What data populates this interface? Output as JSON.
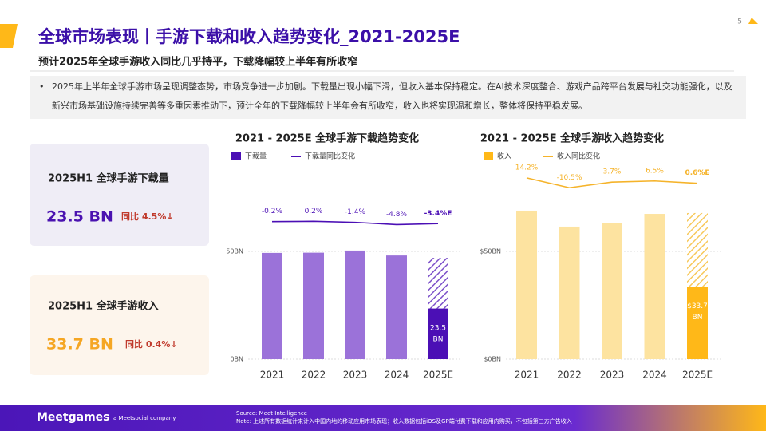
{
  "page_number": "5",
  "header": {
    "title": "全球市场表现丨手游下载和收入趋势变化_2021-2025E",
    "subtitle": "预计2025年全球手游收入同比几乎持平，下载降幅较上半年有所收窄"
  },
  "summary": "2025年上半年全球手游市场呈现调整态势，市场竞争进一步加剧。下载量出现小幅下滑，但收入基本保持稳定。在AI技术深度整合、游戏产品跨平台发展与社交功能强化，以及新兴市场基础设施持续完善等多重因素推动下，预计全年的下载降幅较上半年会有所收窄，收入也将实现温和增长，整体将保持平稳发展。",
  "cards": [
    {
      "title": "2025H1 全球手游下载量",
      "value": "23.5 BN",
      "change": "同比 4.5%↓"
    },
    {
      "title": "2025H1 全球手游收入",
      "value": "33.7 BN",
      "change": "同比 0.4%↓"
    }
  ],
  "chart_data": [
    {
      "type": "bar",
      "title": "2021 - 2025E 全球手游下载趋势变化",
      "categories": [
        "2021",
        "2022",
        "2023",
        "2024",
        "2025E"
      ],
      "ylim": [
        0,
        80
      ],
      "yticks": [
        {
          "value": 0,
          "label": "0BN"
        },
        {
          "value": 50,
          "label": "50BN"
        }
      ],
      "y2lim": [
        -40,
        40
      ],
      "series": [
        {
          "name": "下载量",
          "color": "#9b72d9",
          "highlight_color": "#4b0fb5",
          "values": [
            49.3,
            49.4,
            50.4,
            48.1,
            23.5
          ],
          "value_labels": [
            null,
            null,
            null,
            null,
            "23.5 BN"
          ],
          "forecast_values": [
            null,
            null,
            null,
            null,
            23.5
          ]
        },
        {
          "name": "下载量同比变化",
          "type": "line",
          "axis": "y2",
          "color": "#4b0fb5",
          "values": [
            -0.2,
            0.2,
            -1.4,
            -4.8,
            -3.4
          ],
          "value_labels": [
            "-0.2%",
            "0.2%",
            "-1.4%",
            "-4.8%",
            "-3.4%E"
          ]
        }
      ]
    },
    {
      "type": "bar",
      "title": "2021 - 2025E 全球手游收入趋势变化",
      "categories": [
        "2021",
        "2022",
        "2023",
        "2024",
        "2025E"
      ],
      "ylim": [
        0,
        80
      ],
      "yticks": [
        {
          "value": 0,
          "label": "$0BN"
        },
        {
          "value": 50,
          "label": "$50BN"
        }
      ],
      "y2lim": [
        -60,
        60
      ],
      "series": [
        {
          "name": "收入",
          "color": "#fde3a0",
          "highlight_color": "#ffb818",
          "values": [
            68.9,
            61.5,
            63.3,
            67.4,
            33.7
          ],
          "value_labels": [
            null,
            null,
            null,
            null,
            "$33.7 BN"
          ],
          "forecast_values": [
            null,
            null,
            null,
            null,
            34.1
          ]
        },
        {
          "name": "收入同比变化",
          "type": "line",
          "axis": "y2",
          "color": "#f5b32a",
          "values": [
            14.2,
            -10.5,
            3.7,
            6.5,
            0.6
          ],
          "value_labels": [
            "14.2%",
            "-10.5%",
            "3.7%",
            "6.5%",
            "0.6%E"
          ]
        }
      ]
    }
  ],
  "footer": {
    "logo": "Meetgames",
    "tagline": "a Meetsocial company",
    "source": "Source: Meet Intelligence",
    "note": "Note: 上述所有数据统计来计入中国内地的移动应用市场表现；收入数据包括iOS及GP端付费下载和应用内购买，不包括第三方广告收入"
  }
}
